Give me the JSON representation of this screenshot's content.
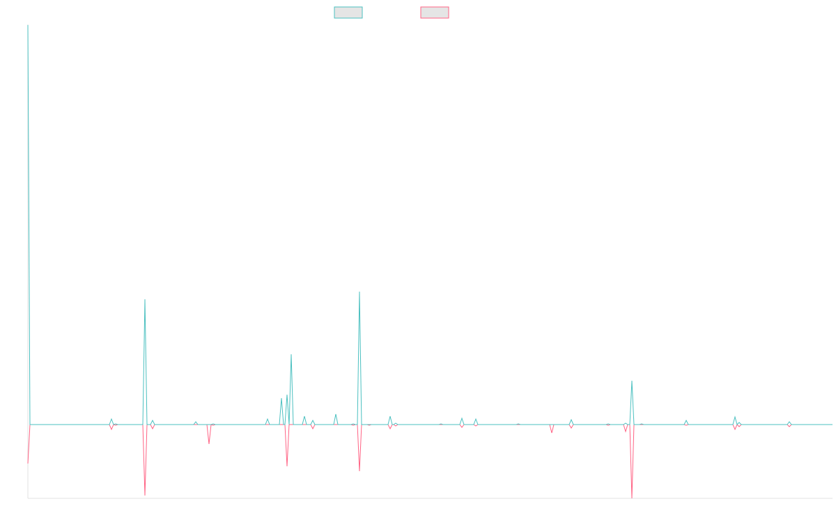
{
  "chart_data": {
    "type": "line",
    "xlim": [
      0,
      1155
    ],
    "ylim": [
      -10.6,
      57.5
    ],
    "grid": false,
    "x": [
      0,
      3,
      117,
      120,
      123,
      126,
      129,
      165,
      168,
      171,
      176,
      179,
      182,
      238,
      241,
      244,
      257,
      260,
      263,
      266,
      269,
      341,
      344,
      347,
      361,
      364,
      367,
      369,
      372,
      375,
      378,
      381,
      394,
      397,
      400,
      406,
      409,
      412,
      439,
      442,
      445,
      464,
      467,
      470,
      473,
      476,
      479,
      487,
      490,
      493,
      517,
      520,
      523,
      525,
      528,
      531,
      590,
      593,
      596,
      620,
      623,
      626,
      640,
      643,
      646,
      701,
      704,
      707,
      749,
      752,
      755,
      777,
      780,
      783,
      830,
      833,
      836,
      855,
      858,
      861,
      864,
      867,
      870,
      878,
      881,
      884,
      942,
      945,
      948,
      1012,
      1015,
      1018,
      1021,
      1024,
      1090,
      1093,
      1096,
      1155
    ],
    "series": [
      {
        "color": "#4bc0c0",
        "values": [
          57.4,
          0,
          0,
          0.8,
          0,
          0.1,
          0,
          0,
          18.0,
          0,
          0,
          0.6,
          0,
          0,
          0.4,
          0,
          0,
          0,
          0,
          0.1,
          0,
          0,
          0.8,
          0,
          0,
          3.8,
          0,
          0,
          4.3,
          0,
          10.1,
          0,
          0,
          1.2,
          0,
          0,
          0.6,
          0,
          0,
          1.5,
          0,
          0,
          0.1,
          0,
          0,
          19.1,
          0,
          0,
          0,
          0,
          0,
          1.2,
          0,
          0,
          0.2,
          0,
          0,
          0.1,
          0,
          0,
          0.9,
          0,
          0,
          0.8,
          0,
          0,
          0.1,
          0,
          0,
          0,
          0,
          0,
          0.7,
          0,
          0,
          0.1,
          0,
          0,
          0.2,
          0,
          0,
          6.3,
          0,
          0,
          0.1,
          0,
          0,
          0.6,
          0,
          0,
          1.1,
          0,
          0.3,
          0,
          0,
          0.4,
          0,
          0
        ]
      },
      {
        "color": "#ff6384",
        "values": [
          -5.6,
          0,
          0,
          -0.7,
          0,
          -0.1,
          0,
          0,
          -10.2,
          0,
          0,
          -0.6,
          0,
          0,
          0,
          0,
          0,
          -2.8,
          0,
          -0.1,
          0,
          0,
          0,
          0,
          0,
          0,
          0,
          0,
          -6.0,
          0,
          0,
          0,
          0,
          0,
          0,
          0,
          -0.6,
          0,
          0,
          0,
          0,
          0,
          -0.1,
          0,
          0,
          -6.7,
          0,
          0,
          -0.1,
          0,
          0,
          -0.6,
          0,
          0,
          -0.2,
          0,
          0,
          0,
          0,
          0,
          -0.4,
          0,
          0,
          -0.2,
          0,
          0,
          0,
          0,
          0,
          -1.2,
          0,
          0,
          -0.5,
          0,
          0,
          -0.1,
          0,
          0,
          -1.0,
          0,
          0,
          -10.6,
          0,
          0,
          0,
          0,
          0,
          -0.1,
          0,
          0,
          -0.7,
          0,
          -0.3,
          0,
          0,
          -0.3,
          0,
          0
        ]
      }
    ]
  }
}
